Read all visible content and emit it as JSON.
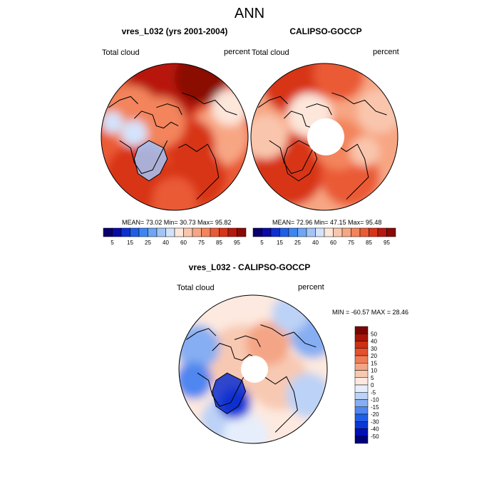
{
  "figure": {
    "title": "ANN",
    "colors": {
      "ocean_line": "#000000",
      "text": "#000000"
    }
  },
  "chart_data": [
    {
      "type": "heatmap",
      "projection": "north-polar-stereographic",
      "title": "vres_L032 (yrs 2001-2004)",
      "left_label": "Total cloud",
      "right_label": "percent",
      "stats": {
        "mean": 73.02,
        "min": 30.73,
        "max": 95.82
      },
      "stats_text": "MEAN=  73.02  Min=  30.73  Max=  95.82",
      "colorbar": {
        "orientation": "horizontal",
        "levels": [
          5,
          10,
          15,
          20,
          25,
          30,
          40,
          50,
          60,
          70,
          75,
          80,
          85,
          90,
          95
        ],
        "tick_labels": [
          "5",
          "15",
          "25",
          "40",
          "60",
          "75",
          "85",
          "95"
        ],
        "colors": [
          "#08006b",
          "#0a0aa8",
          "#0d2fcf",
          "#1f5fe8",
          "#3d86f2",
          "#6ea6f5",
          "#a3c4f7",
          "#d4e3fb",
          "#fde6da",
          "#f9c6ad",
          "#f7a683",
          "#f3845c",
          "#ea5a35",
          "#d83419",
          "#b8180d",
          "#8a0a05"
        ]
      },
      "field_summary": "Mostly 70-95% cloud; highest over North Pacific/Atlantic, lower (40-60%) over Greenland and parts of Canada/Siberia"
    },
    {
      "type": "heatmap",
      "projection": "north-polar-stereographic",
      "title": "CALIPSO-GOCCP",
      "left_label": "Total cloud",
      "right_label": "percent",
      "stats": {
        "mean": 72.96,
        "min": 47.15,
        "max": 95.48
      },
      "stats_text": "MEAN=  72.96  Min=  47.15  Max=  95.48",
      "colorbar": {
        "orientation": "horizontal",
        "levels": [
          5,
          10,
          15,
          20,
          25,
          30,
          40,
          50,
          60,
          70,
          75,
          80,
          85,
          90,
          95
        ],
        "tick_labels": [
          "5",
          "15",
          "25",
          "40",
          "60",
          "75",
          "85",
          "95"
        ],
        "colors": [
          "#08006b",
          "#0a0aa8",
          "#0d2fcf",
          "#1f5fe8",
          "#3d86f2",
          "#6ea6f5",
          "#a3c4f7",
          "#d4e3fb",
          "#fde6da",
          "#f9c6ad",
          "#f7a683",
          "#f3845c",
          "#ea5a35",
          "#d83419",
          "#b8180d",
          "#8a0a05"
        ]
      },
      "missing_region": "pole (no data)",
      "field_summary": "Mostly 70-90% cloud; high over North Atlantic and Pacific storm tracks, lower over Arctic continents"
    },
    {
      "type": "heatmap",
      "projection": "north-polar-stereographic",
      "title": "vres_L032 - CALIPSO-GOCCP",
      "left_label": "Total cloud",
      "right_label": "percent",
      "stats": {
        "min": -60.57,
        "max": 28.46
      },
      "stats_text": "MIN = -60.57 MAX =  28.46",
      "colorbar": {
        "orientation": "vertical",
        "levels": [
          -50,
          -40,
          -30,
          -20,
          -15,
          -10,
          -5,
          0,
          5,
          10,
          15,
          20,
          30,
          40,
          50
        ],
        "tick_labels": [
          "50",
          "40",
          "30",
          "20",
          "15",
          "10",
          "5",
          "0",
          "-5",
          "-10",
          "-15",
          "-20",
          "-30",
          "-40",
          "-50"
        ],
        "colors": [
          "#00007a",
          "#0010b8",
          "#0a38d8",
          "#1f5fe8",
          "#4f86ef",
          "#86aef2",
          "#bcd2f6",
          "#e6eefb",
          "#fde9df",
          "#f8c9b2",
          "#f4a585",
          "#ef7c55",
          "#e4512d",
          "#cc2f13",
          "#a91508",
          "#7a0603"
        ]
      },
      "missing_region": "pole (no data)",
      "field_summary": "Mostly +0 to +15 over Arctic Ocean and Siberia; negative (-5 to -20) over North Pacific/Atlantic margins; strongly negative (-30 to -50) over Greenland"
    }
  ]
}
